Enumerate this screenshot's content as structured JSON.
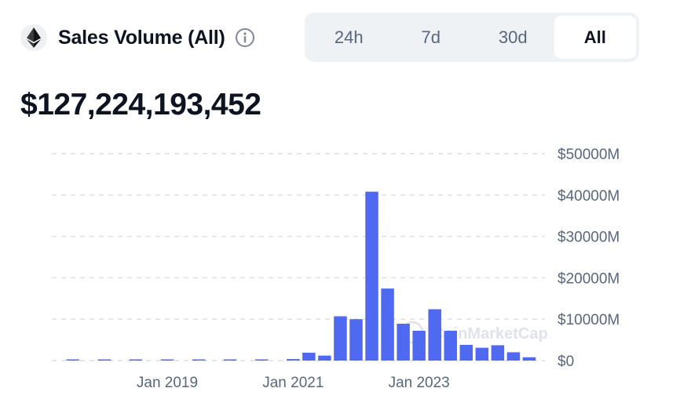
{
  "header": {
    "title": "Sales Volume (All)",
    "icons": {
      "coin": "ethereum-icon",
      "info": "info-icon"
    }
  },
  "range_tabs": [
    {
      "label": "24h",
      "active": false
    },
    {
      "label": "7d",
      "active": false
    },
    {
      "label": "30d",
      "active": false
    },
    {
      "label": "All",
      "active": true
    }
  ],
  "total_value": "$127,224,193,452",
  "watermark": "CoinMarketCap",
  "colors": {
    "bar": "#4f69f0",
    "text": "#0d1421",
    "muted": "#58667e",
    "tab_bg": "#eff2f5"
  },
  "chart_data": {
    "type": "bar",
    "title": "",
    "xlabel": "",
    "ylabel": "",
    "y_unit": "M USD",
    "ylim": [
      0,
      50000
    ],
    "y_ticks": [
      0,
      10000,
      20000,
      30000,
      40000,
      50000
    ],
    "y_tick_labels": [
      "$0",
      "$10000M",
      "$20000M",
      "$30000M",
      "$40000M",
      "$50000M"
    ],
    "x_tick_labels": [
      "Jan 2019",
      "Jan 2021",
      "Jan 2023"
    ],
    "x_tick_dates": [
      "2019-01",
      "2021-01",
      "2023-01"
    ],
    "grid": true,
    "series": [
      {
        "categories": [
          "2017-07",
          "2018-01",
          "2018-07",
          "2019-01",
          "2019-07",
          "2020-01",
          "2020-07",
          "2021-01",
          "2021-04",
          "2021-07",
          "2021-10",
          "2022-01",
          "2022-04",
          "2022-07",
          "2022-10",
          "2023-01",
          "2023-04",
          "2023-07",
          "2023-10",
          "2024-01",
          "2024-04",
          "2024-07",
          "2024-10"
        ],
        "values": [
          200,
          80,
          100,
          130,
          140,
          180,
          250,
          360,
          1900,
          1200,
          10700,
          10000,
          40800,
          17400,
          8900,
          7200,
          12400,
          7200,
          3800,
          3100,
          3700,
          2000,
          800
        ]
      }
    ]
  }
}
